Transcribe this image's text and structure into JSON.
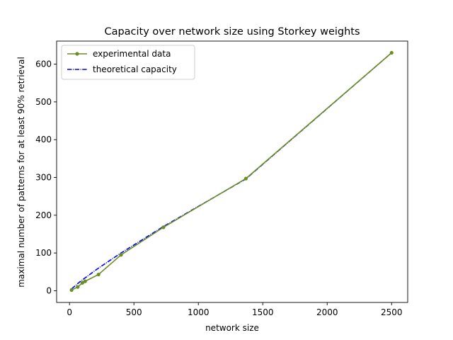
{
  "chart_data": {
    "type": "line",
    "title": "Capacity over network size using Storkey weights",
    "xlabel": "network size",
    "ylabel": "maximal number of patterns for at least 90% retrieval",
    "xlim": [
      -100,
      2625
    ],
    "ylim": [
      -31,
      661
    ],
    "xticks": [
      0,
      500,
      1000,
      1500,
      2000,
      2500
    ],
    "yticks": [
      0,
      100,
      200,
      300,
      400,
      500,
      600
    ],
    "grid": false,
    "legend_position": "top-left",
    "series": [
      {
        "name": "experimental data",
        "color": "#6b8e23",
        "style": "solid",
        "marker": "circle",
        "x": [
          16,
          64,
          100,
          121,
          225,
          400,
          729,
          1369,
          2500
        ],
        "y": [
          2,
          10,
          21,
          25,
          43,
          95,
          168,
          297,
          630
        ]
      },
      {
        "name": "theoretical capacity",
        "color": "#0000ff",
        "style": "dashdot",
        "marker": "none",
        "x": [
          16,
          64,
          100,
          121,
          225,
          400,
          729,
          1369,
          2500
        ],
        "y": [
          5,
          19,
          29,
          34,
          60,
          100,
          170,
          296,
          630
        ]
      }
    ]
  }
}
